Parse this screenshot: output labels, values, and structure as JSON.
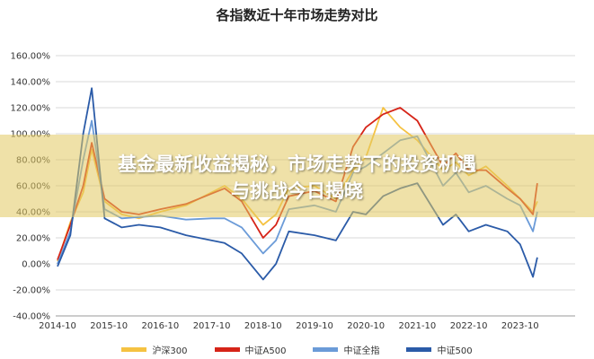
{
  "chart_data": {
    "type": "line",
    "title": "各指数近十年市场走势对比",
    "xlabel": "",
    "ylabel": "",
    "x_ticks": [
      "2014-10",
      "2015-10",
      "2016-10",
      "2017-10",
      "2018-10",
      "2019-10",
      "2020-10",
      "2021-10",
      "2022-10",
      "2023-10"
    ],
    "y_ticks": [
      "160.00%",
      "140.00%",
      "120.00%",
      "100.00%",
      "80.00%",
      "60.00%",
      "40.00%",
      "20.00%",
      "0.00%",
      "-20.00%",
      "-40.00%"
    ],
    "ylim": [
      -40,
      160
    ],
    "grid": "horizontal",
    "legend_position": "bottom",
    "x": [
      "2014-10",
      "2015-01",
      "2015-04",
      "2015-06",
      "2015-09",
      "2016-01",
      "2016-05",
      "2016-10",
      "2017-04",
      "2017-10",
      "2018-01",
      "2018-05",
      "2018-10",
      "2019-01",
      "2019-04",
      "2019-10",
      "2020-03",
      "2020-07",
      "2020-10",
      "2021-02",
      "2021-06",
      "2021-10",
      "2022-04",
      "2022-07",
      "2022-10",
      "2023-02",
      "2023-07",
      "2023-10",
      "2024-01",
      "2024-02"
    ],
    "series": [
      {
        "name": "沪深300",
        "color": "#f5c242",
        "values": [
          2,
          32,
          55,
          88,
          48,
          38,
          35,
          40,
          45,
          55,
          60,
          50,
          30,
          38,
          58,
          60,
          50,
          72,
          82,
          120,
          105,
          95,
          72,
          78,
          68,
          75,
          60,
          50,
          40,
          48
        ]
      },
      {
        "name": "中证A500",
        "color": "#d62418",
        "values": [
          3,
          30,
          60,
          93,
          50,
          40,
          38,
          42,
          46,
          54,
          58,
          48,
          20,
          30,
          52,
          56,
          48,
          90,
          105,
          115,
          120,
          110,
          75,
          85,
          72,
          72,
          58,
          50,
          38,
          62
        ]
      },
      {
        "name": "中证全指",
        "color": "#6b9bd8",
        "values": [
          0,
          25,
          80,
          110,
          42,
          35,
          36,
          37,
          34,
          35,
          35,
          28,
          8,
          18,
          42,
          45,
          40,
          70,
          75,
          85,
          95,
          98,
          60,
          70,
          55,
          60,
          50,
          45,
          25,
          40
        ]
      },
      {
        "name": "中证500",
        "color": "#2b5ba8",
        "values": [
          -2,
          22,
          100,
          135,
          35,
          28,
          30,
          28,
          22,
          18,
          16,
          8,
          -12,
          0,
          25,
          22,
          18,
          40,
          38,
          52,
          58,
          62,
          30,
          38,
          25,
          30,
          25,
          15,
          -10,
          5
        ]
      }
    ]
  },
  "overlay": {
    "line1": "基金最新收益揭秘，市场走势下的投资机遇",
    "line2": "与挑战今日揭晓"
  }
}
